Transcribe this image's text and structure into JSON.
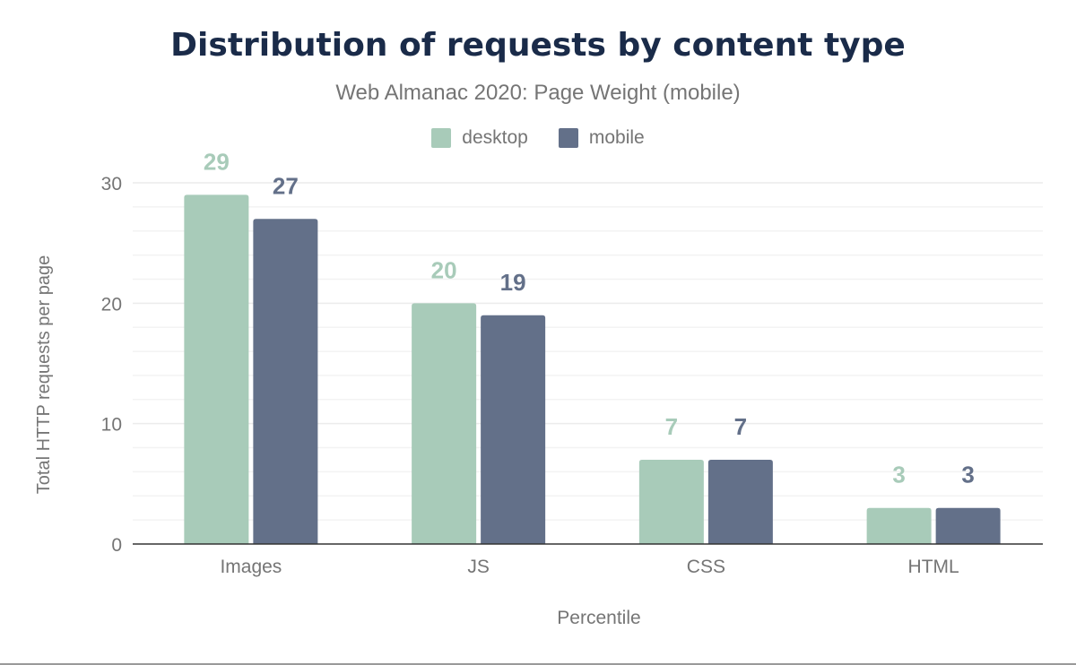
{
  "chart_data": {
    "type": "bar",
    "title": "Distribution of requests by content type",
    "subtitle": "Web Almanac 2020: Page Weight (mobile)",
    "xlabel": "Percentile",
    "ylabel": "Total HTTP requests per page",
    "categories": [
      "Images",
      "JS",
      "CSS",
      "HTML"
    ],
    "series": [
      {
        "name": "desktop",
        "color": "#a8cbb9",
        "values": [
          29,
          20,
          7,
          3
        ]
      },
      {
        "name": "mobile",
        "color": "#637089",
        "values": [
          27,
          19,
          7,
          3
        ]
      }
    ],
    "ylim": [
      0,
      30
    ],
    "yticks": [
      0,
      10,
      20,
      30
    ],
    "grid": true,
    "legend": "top",
    "data_labels": true
  }
}
